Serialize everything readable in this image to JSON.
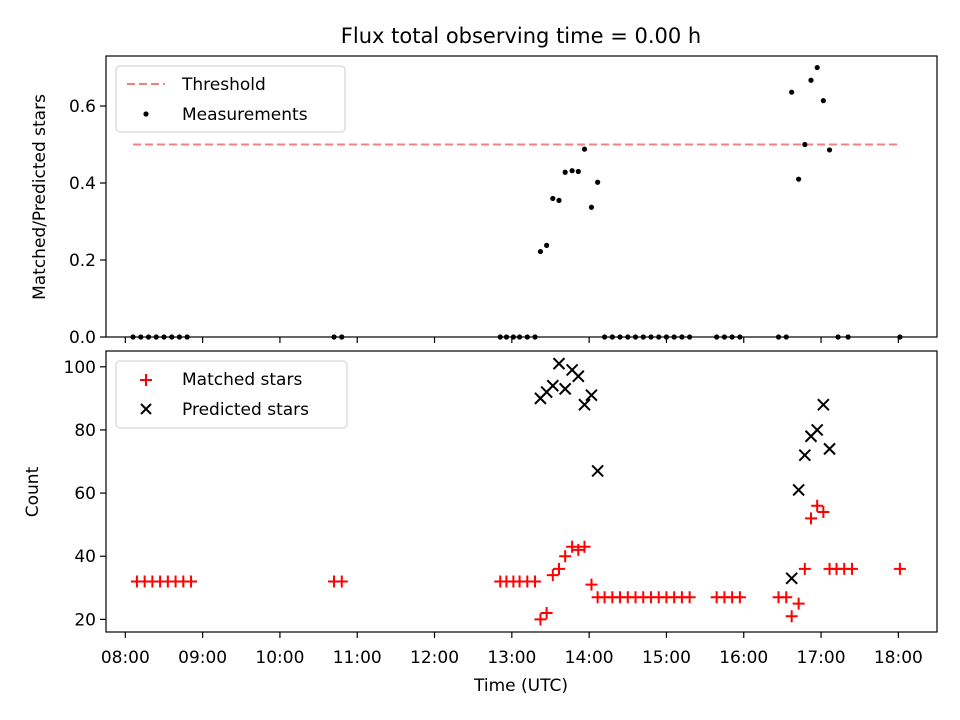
{
  "title": "Flux total observing time = 0.00 h",
  "x_axis": {
    "label": "Time (UTC)",
    "range_hours": [
      7.75,
      18.5
    ],
    "tick_hours": [
      8,
      9,
      10,
      11,
      12,
      13,
      14,
      15,
      16,
      17,
      18
    ],
    "tick_labels": [
      "08:00",
      "09:00",
      "10:00",
      "11:00",
      "12:00",
      "13:00",
      "14:00",
      "15:00",
      "16:00",
      "17:00",
      "18:00"
    ]
  },
  "chart_data": [
    {
      "type": "scatter",
      "panel": "top",
      "ylabel": "Matched/Predicted stars",
      "ylim": [
        0,
        0.73
      ],
      "yticks": [
        0.0,
        0.2,
        0.4,
        0.6
      ],
      "ytick_labels": [
        "0.0",
        "0.2",
        "0.4",
        "0.6"
      ],
      "legend_position": "upper-left",
      "threshold": {
        "name": "Threshold",
        "value": 0.5,
        "x_range": [
          8.1,
          18.03
        ],
        "color": "#f08080"
      },
      "series": [
        {
          "name": "Measurements",
          "color": "#000000",
          "marker": "dot",
          "points": [
            [
              8.1,
              0.0
            ],
            [
              8.2,
              0.0
            ],
            [
              8.3,
              0.0
            ],
            [
              8.4,
              0.0
            ],
            [
              8.5,
              0.0
            ],
            [
              8.6,
              0.0
            ],
            [
              8.7,
              0.0
            ],
            [
              8.8,
              0.0
            ],
            [
              10.7,
              0.0
            ],
            [
              10.8,
              0.0
            ],
            [
              12.85,
              0.0
            ],
            [
              12.93,
              0.0
            ],
            [
              13.02,
              0.0
            ],
            [
              13.1,
              0.0
            ],
            [
              13.2,
              0.0
            ],
            [
              13.3,
              0.0
            ],
            [
              13.37,
              0.222
            ],
            [
              13.45,
              0.238
            ],
            [
              13.53,
              0.36
            ],
            [
              13.61,
              0.355
            ],
            [
              13.69,
              0.428
            ],
            [
              13.78,
              0.432
            ],
            [
              13.86,
              0.43
            ],
            [
              13.94,
              0.488
            ],
            [
              14.03,
              0.337
            ],
            [
              14.11,
              0.402
            ],
            [
              14.2,
              0.0
            ],
            [
              14.3,
              0.0
            ],
            [
              14.4,
              0.0
            ],
            [
              14.5,
              0.0
            ],
            [
              14.6,
              0.0
            ],
            [
              14.7,
              0.0
            ],
            [
              14.8,
              0.0
            ],
            [
              14.9,
              0.0
            ],
            [
              15.0,
              0.0
            ],
            [
              15.1,
              0.0
            ],
            [
              15.2,
              0.0
            ],
            [
              15.3,
              0.0
            ],
            [
              15.65,
              0.0
            ],
            [
              15.75,
              0.0
            ],
            [
              15.85,
              0.0
            ],
            [
              15.95,
              0.0
            ],
            [
              16.45,
              0.0
            ],
            [
              16.55,
              0.0
            ],
            [
              16.62,
              0.636
            ],
            [
              16.71,
              0.41
            ],
            [
              16.79,
              0.5
            ],
            [
              16.87,
              0.667
            ],
            [
              16.95,
              0.7
            ],
            [
              17.03,
              0.614
            ],
            [
              17.11,
              0.486
            ],
            [
              17.22,
              0.0
            ],
            [
              17.35,
              0.0
            ],
            [
              18.02,
              0.0
            ]
          ]
        }
      ]
    },
    {
      "type": "scatter",
      "panel": "bottom",
      "ylabel": "Count",
      "ylim": [
        16,
        105
      ],
      "yticks": [
        20,
        40,
        60,
        80,
        100
      ],
      "ytick_labels": [
        "20",
        "40",
        "60",
        "80",
        "100"
      ],
      "legend_position": "upper-left",
      "series": [
        {
          "name": "Matched stars",
          "color": "#ff0000",
          "marker": "plus",
          "points": [
            [
              8.15,
              32
            ],
            [
              8.25,
              32
            ],
            [
              8.35,
              32
            ],
            [
              8.45,
              32
            ],
            [
              8.55,
              32
            ],
            [
              8.65,
              32
            ],
            [
              8.75,
              32
            ],
            [
              8.85,
              32
            ],
            [
              10.7,
              32
            ],
            [
              10.8,
              32
            ],
            [
              12.85,
              32
            ],
            [
              12.93,
              32
            ],
            [
              13.02,
              32
            ],
            [
              13.1,
              32
            ],
            [
              13.2,
              32
            ],
            [
              13.3,
              32
            ],
            [
              13.37,
              20
            ],
            [
              13.45,
              22
            ],
            [
              13.53,
              34
            ],
            [
              13.61,
              36
            ],
            [
              13.69,
              40
            ],
            [
              13.78,
              43
            ],
            [
              13.86,
              42
            ],
            [
              13.94,
              43
            ],
            [
              14.03,
              31
            ],
            [
              14.11,
              27
            ],
            [
              14.2,
              27
            ],
            [
              14.3,
              27
            ],
            [
              14.4,
              27
            ],
            [
              14.5,
              27
            ],
            [
              14.6,
              27
            ],
            [
              14.7,
              27
            ],
            [
              14.8,
              27
            ],
            [
              14.9,
              27
            ],
            [
              15.0,
              27
            ],
            [
              15.1,
              27
            ],
            [
              15.2,
              27
            ],
            [
              15.3,
              27
            ],
            [
              15.65,
              27
            ],
            [
              15.75,
              27
            ],
            [
              15.85,
              27
            ],
            [
              15.95,
              27
            ],
            [
              16.45,
              27
            ],
            [
              16.55,
              27
            ],
            [
              16.62,
              21
            ],
            [
              16.71,
              25
            ],
            [
              16.79,
              36
            ],
            [
              16.87,
              52
            ],
            [
              16.95,
              56
            ],
            [
              17.03,
              54
            ],
            [
              17.11,
              36
            ],
            [
              17.2,
              36
            ],
            [
              17.3,
              36
            ],
            [
              17.4,
              36
            ],
            [
              18.02,
              36
            ]
          ]
        },
        {
          "name": "Predicted stars",
          "color": "#000000",
          "marker": "x",
          "points": [
            [
              13.37,
              90
            ],
            [
              13.45,
              92
            ],
            [
              13.53,
              94
            ],
            [
              13.61,
              101
            ],
            [
              13.69,
              93
            ],
            [
              13.78,
              99
            ],
            [
              13.86,
              97
            ],
            [
              13.94,
              88
            ],
            [
              14.03,
              91
            ],
            [
              14.11,
              67
            ],
            [
              16.62,
              33
            ],
            [
              16.71,
              61
            ],
            [
              16.79,
              72
            ],
            [
              16.87,
              78
            ],
            [
              16.95,
              80
            ],
            [
              17.03,
              88
            ],
            [
              17.11,
              74
            ]
          ]
        }
      ]
    }
  ]
}
